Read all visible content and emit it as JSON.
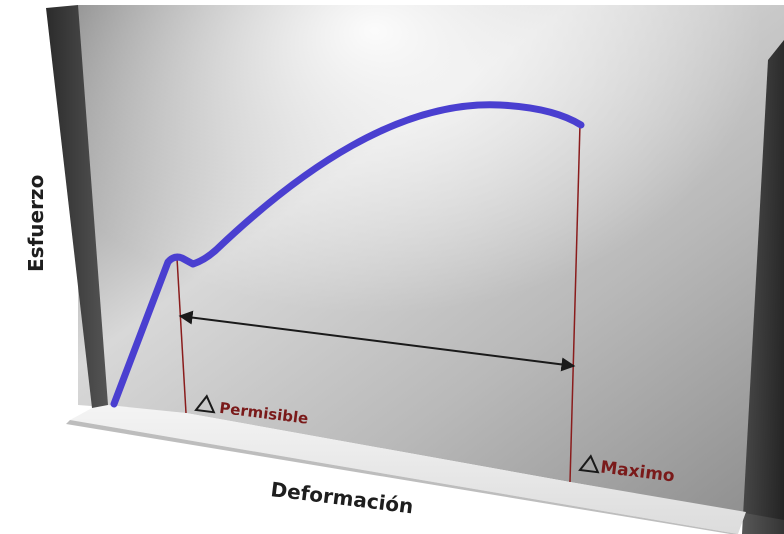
{
  "labels": {
    "y_axis": "Esfuerzo",
    "x_axis": "Deformación",
    "permissible": "Permisible",
    "maximum": "Maximo"
  },
  "colors": {
    "curve": "#4a3fd0",
    "marker_line": "#8a1c1c",
    "marker_text": "#7a1a1a",
    "arrow": "#1a1a1a"
  },
  "icons": {
    "delta": "triangle-delta-icon"
  }
}
